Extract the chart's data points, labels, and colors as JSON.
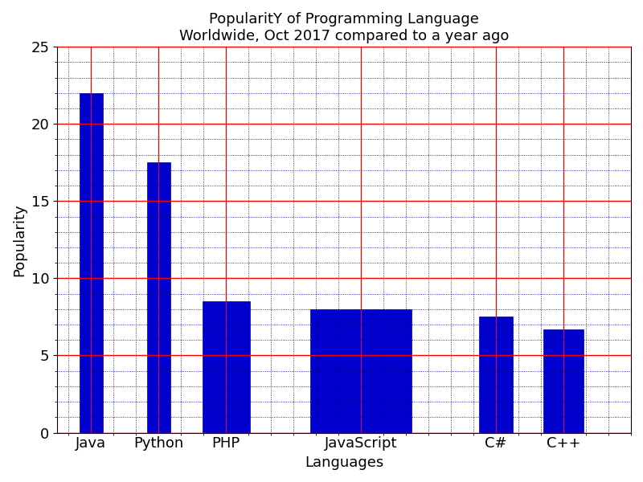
{
  "title": "PopularitY of Programming Language\nWorldwide, Oct 2017 compared to a year ago",
  "xlabel": "Languages",
  "ylabel": "Popularity",
  "languages": [
    "Java",
    "Python",
    "PHP",
    "JavaScript",
    "C#",
    "C++"
  ],
  "values": [
    22,
    17.5,
    8.5,
    8.0,
    7.5,
    6.7
  ],
  "positions": [
    0.5,
    1.5,
    2.5,
    4.5,
    6.5,
    7.5
  ],
  "widths": [
    0.35,
    0.35,
    0.7,
    1.5,
    0.5,
    0.6
  ],
  "bar_color": "#0000CC",
  "bar_edgecolor": "#000080",
  "ylim": [
    0,
    25
  ],
  "yticks": [
    0,
    5,
    10,
    15,
    20,
    25
  ],
  "xlim": [
    0,
    8.5
  ],
  "tick_label_fontsize": 13,
  "axis_label_fontsize": 13,
  "title_fontsize": 13,
  "grid_major_color": "red",
  "grid_minor_color": "#00008B",
  "background_color": "white",
  "figsize": [
    8.0,
    6.0
  ],
  "dpi": 100
}
